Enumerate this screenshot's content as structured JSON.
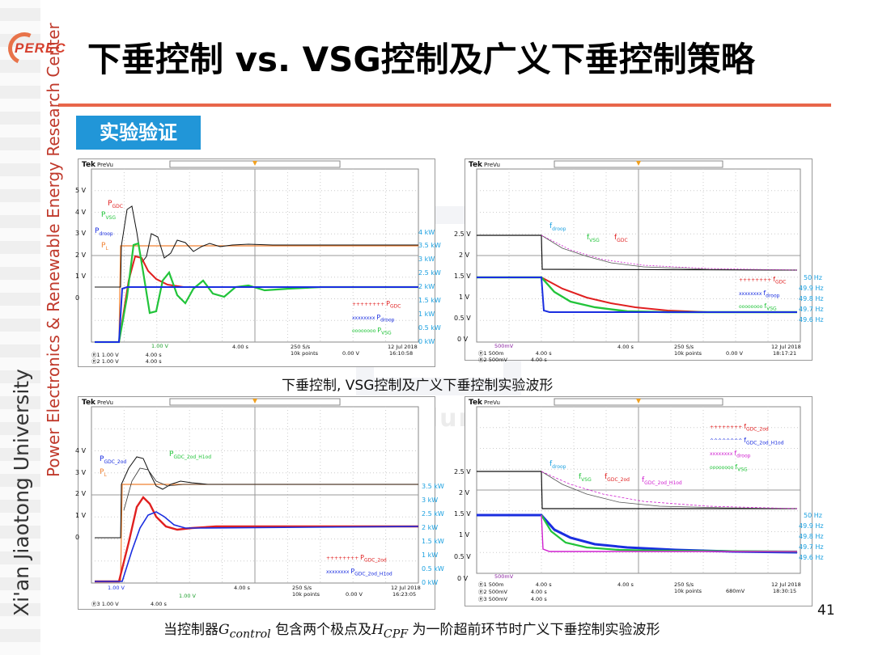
{
  "slide": {
    "title": "下垂控制 vs. VSG控制及广义下垂控制策略",
    "section": "实验验证",
    "logo_text": "PEREC",
    "vertical_red": "Power Electronics & Renewable Energy Research Center",
    "vertical_gray": "Xi'an Jiaotong University",
    "caption1": "下垂控制, VSG控制及广义下垂控制实验波形",
    "caption2_pre": "当控制器",
    "caption2_g": "G",
    "caption2_gsub": "control",
    "caption2_mid": " 包含两个极点及",
    "caption2_h": "H",
    "caption2_hsub": "CPF",
    "caption2_post": " 为一阶超前环节时广义下垂控制实验波形",
    "page_number": "41",
    "watermark": "www.niudunyan.com"
  },
  "colors": {
    "red": "#e02020",
    "green": "#22c43a",
    "blue": "#1a2ee0",
    "black": "#111111",
    "magenta": "#d020d0",
    "cyan": "#1aa0e0",
    "orange": "#f08030"
  },
  "scopes": {
    "tl": {
      "brand": "Tek",
      "mode": "PreVu",
      "left_axis": [
        "5 V",
        "4 V",
        "3 V",
        "2 V",
        "1 V",
        "0"
      ],
      "right_axis": [
        "4 kW",
        "3.5 kW",
        "3 kW",
        "2.5 kW",
        "2 kW",
        "1.5 kW",
        "1 kW",
        "0.5 kW",
        "0 kW"
      ],
      "labels": {
        "pgdc": "P",
        "pgdc_sub": "GDC",
        "pvsg": "P",
        "pvsg_sub": "VSG",
        "pdroop": "P",
        "pdroop_sub": "droop",
        "pl": "P",
        "pl_sub": "L"
      },
      "legend": [
        {
          "mark": "++++++++",
          "t": "P",
          "s": "GDC",
          "color": "red"
        },
        {
          "mark": "xxxxxxxx",
          "t": "P",
          "s": "droop",
          "color": "blue"
        },
        {
          "mark": "oooooooo",
          "t": "P",
          "s": "VSG",
          "color": "green"
        }
      ],
      "ch4": "1.00 V",
      "r1": "1.00 V",
      "r1b": "4.00 s",
      "r2": "1.00 V",
      "r2b": "4.00 s",
      "time": "4.00 s",
      "rate": "250 S/s",
      "points": "10k points",
      "trig": "0.00 V",
      "date": "12 Jul  2018",
      "clock": "16:10:58"
    },
    "tr": {
      "brand": "Tek",
      "mode": "PreVu",
      "left_axis": [
        "2.5 V",
        "2 V",
        "1.5 V",
        "1 V",
        "0.5 V",
        "0 V"
      ],
      "right_axis": [
        "50 Hz",
        "49.9 Hz",
        "49.8 Hz",
        "49.7 Hz",
        "49.6 Hz"
      ],
      "labels": {
        "fdroop": "f",
        "fdroop_sub": "droop",
        "fvsg": "f",
        "fvsg_sub": "VSG",
        "fgdc": "f",
        "fgdc_sub": "GDC"
      },
      "legend": [
        {
          "mark": "++++++++",
          "t": "f",
          "s": "GDC",
          "color": "red"
        },
        {
          "mark": "xxxxxxxx",
          "t": "f",
          "s": "droop",
          "color": "blue"
        },
        {
          "mark": "oooooooo",
          "t": "f",
          "s": "VSG",
          "color": "green"
        }
      ],
      "ch3": "500mV",
      "r1": "500m",
      "r1b": "4.00 s",
      "r2": "500mV",
      "r2b": "4.00 s",
      "time": "4.00 s",
      "rate": "250 S/s",
      "points": "10k points",
      "trig": "0.00 V",
      "date": "12 Jul  2018",
      "clock": "18:17:21"
    },
    "bl": {
      "brand": "Tek",
      "mode": "PreVu",
      "left_axis": [
        "4 V",
        "3 V",
        "2 V",
        "1 V",
        "0"
      ],
      "right_axis": [
        "3.5 kW",
        "3 kW",
        "2.5 kW",
        "2 kW",
        "1.5 kW",
        "1 kW",
        "0.5 kW",
        "0 kW"
      ],
      "labels": {
        "pgdc2": "P",
        "pgdc2_sub": "GDC_2od",
        "pgdc2h": "P",
        "pgdc2h_sub": "GDC_2od_H1od",
        "pl": "P",
        "pl_sub": "L"
      },
      "legend": [
        {
          "mark": "++++++++",
          "t": "P",
          "s": "GDC_2od",
          "color": "red"
        },
        {
          "mark": "xxxxxxxx",
          "t": "P",
          "s": "GDC_2od_H1od",
          "color": "blue"
        }
      ],
      "ch1": "1.00 V",
      "ch4": "1.00 V",
      "r3": "1.00 V",
      "r3b": "4.00 s",
      "time": "4.00 s",
      "rate": "250 S/s",
      "points": "10k points",
      "trig": "0.00 V",
      "date": "12 Jul  2018",
      "clock": "16:23:05"
    },
    "br": {
      "brand": "Tek",
      "mode": "PreVu",
      "left_axis": [
        "2.5 V",
        "2 V",
        "1.5 V",
        "1 V",
        "0.5 V",
        "0 V"
      ],
      "right_axis": [
        "50 Hz",
        "49.9 Hz",
        "49.8 Hz",
        "49.7 Hz",
        "49.6 Hz"
      ],
      "labels": {
        "fdroop": "f",
        "fdroop_sub": "droop",
        "fvsg": "f",
        "fvsg_sub": "VSG",
        "fgdc2": "f",
        "fgdc2_sub": "GDC_2od",
        "fgdc2h": "f",
        "fgdc2h_sub": "GDC_2od_H1od"
      },
      "legend": [
        {
          "mark": "++++++++",
          "t": "f",
          "s": "GDC_2od",
          "color": "red"
        },
        {
          "mark": "^^^^^^^^",
          "t": "f",
          "s": "GDC_2od_H1od",
          "color": "blue"
        },
        {
          "mark": "xxxxxxxx",
          "t": "f",
          "s": "droop",
          "color": "magenta"
        },
        {
          "mark": "oooooooo",
          "t": "f",
          "s": "VSG",
          "color": "green"
        }
      ],
      "ch3": "500mV",
      "r1": "500m",
      "r1b": "4.00 s",
      "r2": "500mV",
      "r2b": "4.00 s",
      "r3": "500mV",
      "r3b": "4.00 s",
      "time": "4.00 s",
      "rate": "250 S/s",
      "points": "10k points",
      "trig": "680mV",
      "date": "12 Jul  2018",
      "clock": "18:30:15"
    }
  }
}
